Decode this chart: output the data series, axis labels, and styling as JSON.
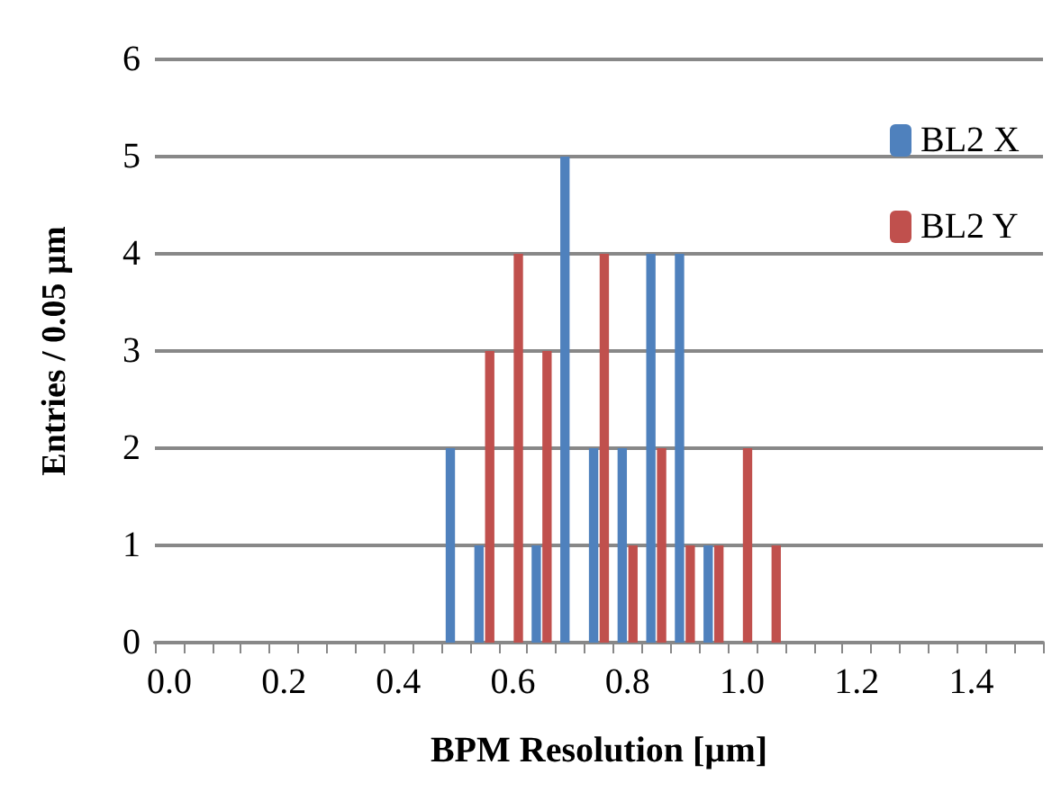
{
  "chart_data": {
    "type": "bar",
    "xlabel": "BPM Resolution [µm]",
    "ylabel": "Entries / 0.05 µm",
    "categories": [
      "0.0",
      null,
      null,
      null,
      "0.2",
      null,
      null,
      null,
      "0.4",
      null,
      null,
      null,
      "0.6",
      null,
      null,
      null,
      "0.8",
      null,
      null,
      null,
      "1.0",
      null,
      null,
      null,
      "1.2",
      null,
      null,
      null,
      "1.4",
      null,
      null
    ],
    "series": [
      {
        "name": "BL2 X",
        "color": "#4f81bd",
        "values": [
          0,
          0,
          0,
          0,
          0,
          0,
          0,
          0,
          0,
          0,
          2,
          1,
          0,
          1,
          5,
          2,
          2,
          4,
          4,
          1,
          0,
          0,
          0,
          0,
          0,
          0,
          0,
          0,
          0,
          0,
          0
        ]
      },
      {
        "name": "BL2 Y",
        "color": "#c0504d",
        "values": [
          0,
          0,
          0,
          0,
          0,
          0,
          0,
          0,
          0,
          0,
          0,
          3,
          4,
          3,
          0,
          4,
          1,
          2,
          1,
          1,
          2,
          1,
          0,
          0,
          0,
          0,
          0,
          0,
          0,
          0,
          0
        ]
      }
    ],
    "ylim": [
      0,
      6
    ],
    "yticks": [
      0,
      1,
      2,
      3,
      4,
      5,
      6
    ],
    "grid": "y",
    "legend": "top right"
  }
}
